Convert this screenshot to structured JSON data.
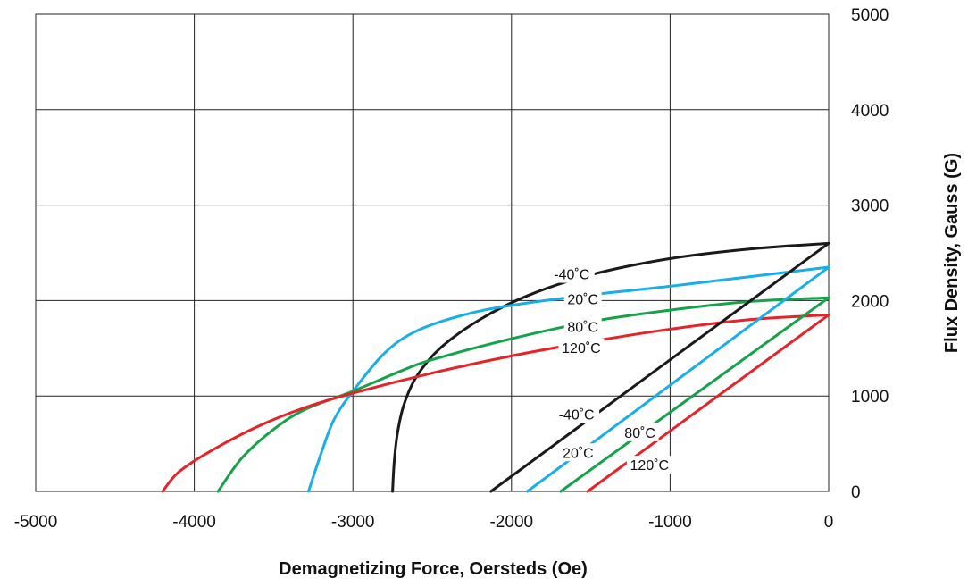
{
  "chart_data": {
    "type": "line",
    "xlabel": "Demagnetizing Force, Oersteds (Oe)",
    "ylabel": "Flux Density, Gauss (G)",
    "xlim": [
      -5000,
      0
    ],
    "ylim": [
      0,
      5000
    ],
    "x_ticks": [
      "-5000",
      "-4000",
      "-3000",
      "-2000",
      "-1000",
      "0"
    ],
    "y_ticks": [
      "0",
      "1000",
      "2000",
      "3000",
      "4000",
      "5000"
    ],
    "grid": true,
    "y_axis_side": "right",
    "series": [
      {
        "name": "-40˚C",
        "group": "intrinsic",
        "color": "#1a1a1a",
        "points": [
          [
            -2750,
            0
          ],
          [
            -2740,
            300
          ],
          [
            -2720,
            600
          ],
          [
            -2680,
            900
          ],
          [
            -2600,
            1200
          ],
          [
            -2450,
            1500
          ],
          [
            -2200,
            1800
          ],
          [
            -1900,
            2050
          ],
          [
            -1500,
            2270
          ],
          [
            -1000,
            2440
          ],
          [
            -500,
            2540
          ],
          [
            0,
            2600
          ]
        ]
      },
      {
        "name": "20˚C",
        "group": "intrinsic",
        "color": "#19aee6",
        "points": [
          [
            -3280,
            0
          ],
          [
            -3200,
            400
          ],
          [
            -3120,
            750
          ],
          [
            -3000,
            1050
          ],
          [
            -2800,
            1450
          ],
          [
            -2600,
            1680
          ],
          [
            -2300,
            1850
          ],
          [
            -2000,
            1950
          ],
          [
            -1500,
            2060
          ],
          [
            -1000,
            2150
          ],
          [
            -500,
            2250
          ],
          [
            0,
            2350
          ]
        ]
      },
      {
        "name": "80˚C",
        "group": "intrinsic",
        "color": "#16a24a",
        "points": [
          [
            -3850,
            0
          ],
          [
            -3700,
            350
          ],
          [
            -3500,
            650
          ],
          [
            -3300,
            860
          ],
          [
            -3000,
            1050
          ],
          [
            -2700,
            1260
          ],
          [
            -2500,
            1380
          ],
          [
            -2000,
            1600
          ],
          [
            -1500,
            1780
          ],
          [
            -1000,
            1900
          ],
          [
            -500,
            1990
          ],
          [
            0,
            2030
          ]
        ]
      },
      {
        "name": "120˚C",
        "group": "intrinsic",
        "color": "#e52329",
        "points": [
          [
            -4200,
            0
          ],
          [
            -4100,
            200
          ],
          [
            -3900,
            420
          ],
          [
            -3600,
            680
          ],
          [
            -3300,
            880
          ],
          [
            -3000,
            1030
          ],
          [
            -2500,
            1240
          ],
          [
            -2000,
            1420
          ],
          [
            -1500,
            1570
          ],
          [
            -1000,
            1700
          ],
          [
            -500,
            1800
          ],
          [
            0,
            1850
          ]
        ]
      },
      {
        "name": "-40˚C",
        "group": "normal",
        "color": "#1a1a1a",
        "points": [
          [
            -2130,
            0
          ],
          [
            0,
            2600
          ]
        ]
      },
      {
        "name": "20˚C",
        "group": "normal",
        "color": "#19aee6",
        "points": [
          [
            -1900,
            0
          ],
          [
            0,
            2350
          ]
        ]
      },
      {
        "name": "80˚C",
        "group": "normal",
        "color": "#16a24a",
        "points": [
          [
            -1690,
            0
          ],
          [
            0,
            2030
          ]
        ]
      },
      {
        "name": "120˚C",
        "group": "normal",
        "color": "#e52329",
        "points": [
          [
            -1520,
            0
          ],
          [
            0,
            1850
          ]
        ]
      }
    ],
    "annotations": [
      {
        "text": "-40˚C",
        "x": -1620,
        "y": 2270
      },
      {
        "text": "20˚C",
        "x": -1550,
        "y": 2010
      },
      {
        "text": "80˚C",
        "x": -1550,
        "y": 1720
      },
      {
        "text": "120˚C",
        "x": -1560,
        "y": 1500
      },
      {
        "text": "-40˚C",
        "x": -1590,
        "y": 800
      },
      {
        "text": "80˚C",
        "x": -1190,
        "y": 610
      },
      {
        "text": "20˚C",
        "x": -1580,
        "y": 400
      },
      {
        "text": "120˚C",
        "x": -1130,
        "y": 270
      }
    ]
  }
}
